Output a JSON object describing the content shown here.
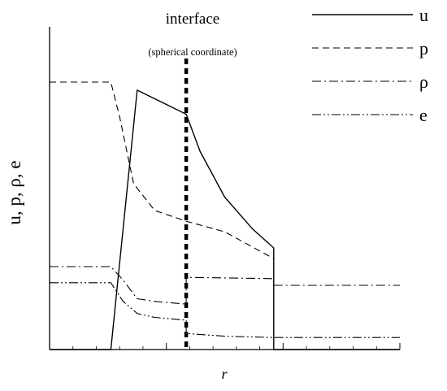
{
  "chart_data": {
    "type": "line",
    "xlabel": "r",
    "ylabel": "u, p, ρ, e",
    "annotation": {
      "title": "interface",
      "subtitle": "(spherical coordinate)",
      "x": 0.39
    },
    "xlim": [
      0,
      1
    ],
    "ylim": [
      0,
      1
    ],
    "legend_position": "top-right",
    "series": [
      {
        "name": "u",
        "style": "solid",
        "points": [
          [
            0.0,
            0.0
          ],
          [
            0.175,
            0.0
          ],
          [
            0.25,
            0.97
          ],
          [
            0.39,
            0.88
          ],
          [
            0.43,
            0.74
          ],
          [
            0.5,
            0.57
          ],
          [
            0.58,
            0.45
          ],
          [
            0.64,
            0.38
          ],
          [
            0.64,
            0.0
          ],
          [
            1.0,
            0.0
          ]
        ]
      },
      {
        "name": "p",
        "style": "dashed",
        "points": [
          [
            0.0,
            1.0
          ],
          [
            0.175,
            1.0
          ],
          [
            0.2,
            0.87
          ],
          [
            0.24,
            0.62
          ],
          [
            0.3,
            0.52
          ],
          [
            0.39,
            0.48
          ],
          [
            0.5,
            0.44
          ],
          [
            0.64,
            0.34
          ]
        ]
      },
      {
        "name": "ρ",
        "style": "dashdot",
        "points": [
          [
            0.0,
            0.31
          ],
          [
            0.175,
            0.31
          ],
          [
            0.21,
            0.26
          ],
          [
            0.25,
            0.19
          ],
          [
            0.3,
            0.18
          ],
          [
            0.39,
            0.17
          ],
          [
            0.39,
            0.27
          ],
          [
            0.64,
            0.265
          ],
          [
            0.64,
            0.24
          ],
          [
            1.0,
            0.24
          ]
        ]
      },
      {
        "name": "e",
        "style": "dashdotdot",
        "points": [
          [
            0.0,
            0.25
          ],
          [
            0.175,
            0.25
          ],
          [
            0.21,
            0.18
          ],
          [
            0.25,
            0.135
          ],
          [
            0.3,
            0.12
          ],
          [
            0.39,
            0.11
          ],
          [
            0.39,
            0.06
          ],
          [
            0.5,
            0.05
          ],
          [
            0.64,
            0.045
          ],
          [
            1.0,
            0.045
          ]
        ]
      }
    ]
  }
}
